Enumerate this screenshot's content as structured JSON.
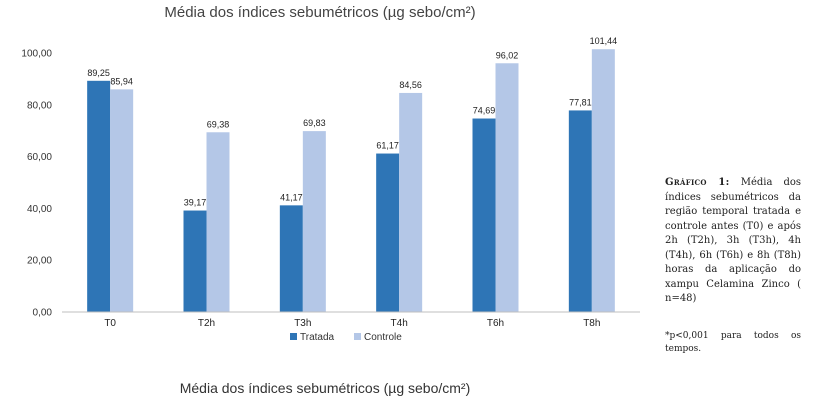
{
  "chart_data": {
    "type": "bar",
    "title": "Média dos índices sebumétricos (µg sebo/cm²)",
    "categories": [
      "T0",
      "T2h",
      "T3h",
      "T4h",
      "T6h",
      "T8h"
    ],
    "series": [
      {
        "name": "Tratada",
        "color": "#2e75b6",
        "values": [
          89.25,
          39.17,
          41.17,
          61.17,
          74.69,
          77.81
        ],
        "labels": [
          "89,25",
          "39,17",
          "41,17",
          "61,17",
          "74,69",
          "77,81"
        ]
      },
      {
        "name": "Controle",
        "color": "#b4c7e7",
        "values": [
          85.94,
          69.38,
          69.83,
          84.56,
          96.02,
          101.44
        ],
        "labels": [
          "85,94",
          "69,38",
          "69,83",
          "84,56",
          "96,02",
          "101,44"
        ]
      }
    ],
    "yticks": [
      0,
      20,
      40,
      60,
      80,
      100
    ],
    "ytick_labels": [
      "0,00",
      "20,00",
      "40,00",
      "60,00",
      "80,00",
      "100,00"
    ],
    "ylim": [
      0,
      105
    ],
    "legend_position": "bottom",
    "grid": false
  },
  "caption": {
    "head": "Gráfico 1:",
    "body": "Média dos índices sebumétricos da região temporal tratada e controle antes (T0) e após 2h (T2h), 3h (T3h), 4h (T4h), 6h (T6h) e 8h (T8h) horas da aplicação do xampu Celamina Zinco ( n=48)"
  },
  "note": "*p<0,001 para todos os tempos.",
  "bottom_title": "Média dos índices sebumétricos (µg sebo/cm²)"
}
